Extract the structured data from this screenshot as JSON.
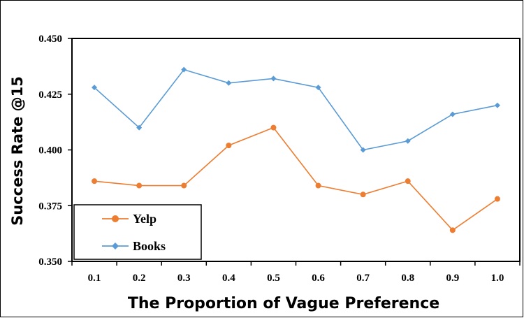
{
  "chart_data": {
    "type": "line",
    "xlabel": "The Proportion of Vague Preference",
    "ylabel": "Success Rate @15",
    "categories": [
      "0.1",
      "0.2",
      "0.3",
      "0.4",
      "0.5",
      "0.6",
      "0.7",
      "0.8",
      "0.9",
      "1.0"
    ],
    "ylim": [
      0.35,
      0.45
    ],
    "yticks": [
      "0.350",
      "0.375",
      "0.400",
      "0.425",
      "0.450"
    ],
    "grid": false,
    "legend_position": "bottom-left",
    "series": [
      {
        "name": "Yelp",
        "color": "#ED7D31",
        "marker": "circle",
        "values": [
          0.386,
          0.384,
          0.384,
          0.402,
          0.41,
          0.384,
          0.38,
          0.386,
          0.364,
          0.378
        ]
      },
      {
        "name": "Books",
        "color": "#5B9BD5",
        "marker": "diamond",
        "values": [
          0.428,
          0.41,
          0.436,
          0.43,
          0.432,
          0.428,
          0.4,
          0.404,
          0.416,
          0.42
        ]
      }
    ]
  }
}
